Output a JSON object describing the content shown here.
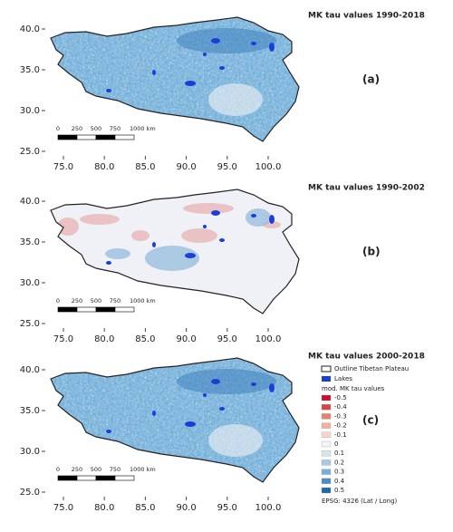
{
  "panels": [
    {
      "title": "MK tau values 1990-2018",
      "label": "(a)",
      "style": "blue"
    },
    {
      "title": "MK tau values 1990-2002",
      "label": "(b)",
      "style": "mixed"
    },
    {
      "title": "MK tau values 2000-2018",
      "label": "(c)",
      "style": "blue"
    }
  ],
  "yticks": [
    "40.0",
    "35.0",
    "30.0",
    "25.0"
  ],
  "xticks": [
    "75.0",
    "80.0",
    "85.0",
    "90.0",
    "95.0",
    "100.0"
  ],
  "scale_bar": [
    "0",
    "250",
    "500",
    "750",
    "1000 km"
  ],
  "legend": {
    "outline": "Outline Tibetan Plateau",
    "lakes": "Lakes",
    "heading": "mod. MK tau values",
    "classes": [
      {
        "label": "-0.5",
        "color": "#c8102e"
      },
      {
        "label": "-0.4",
        "color": "#d9434a"
      },
      {
        "label": "-0.3",
        "color": "#e8806f"
      },
      {
        "label": "-0.2",
        "color": "#f1b29a"
      },
      {
        "label": "-0.1",
        "color": "#f6d6cc"
      },
      {
        "label": "0",
        "color": "#f4f4f6"
      },
      {
        "label": "0.1",
        "color": "#d6e4f0"
      },
      {
        "label": "0.2",
        "color": "#a9c9e3"
      },
      {
        "label": "0.3",
        "color": "#7bb0d6"
      },
      {
        "label": "0.4",
        "color": "#4a8fc3"
      },
      {
        "label": "0.5",
        "color": "#1f6aa8"
      }
    ],
    "crs": "EPSG: 4326 (Lat / Long)"
  }
}
